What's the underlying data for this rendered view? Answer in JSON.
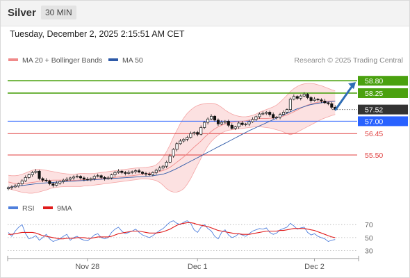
{
  "header": {
    "instrument": "Silver",
    "timeframe": "30 MIN",
    "datetime": "Tuesday, December 2, 2025 2:15:51 AM CET"
  },
  "chart_data": [
    {
      "type": "candlestick",
      "copyright": "Research © 2025 Trading Central",
      "legend": [
        {
          "name": "MA 20 + Bollinger Bands",
          "color": "#f08a8a"
        },
        {
          "name": "MA 50",
          "color": "#2e5aa8"
        }
      ],
      "x_labels": [
        {
          "label": "Nov 28",
          "index": 23
        },
        {
          "label": "Dec 1",
          "index": 55
        },
        {
          "label": "Dec 2",
          "index": 89
        }
      ],
      "ylim": [
        53.8,
        59.3
      ],
      "close": [
        54.05,
        54.08,
        54.12,
        54.22,
        54.35,
        54.5,
        54.62,
        54.72,
        54.78,
        54.45,
        54.38,
        54.35,
        54.22,
        54.15,
        54.25,
        54.32,
        54.38,
        54.42,
        54.48,
        54.52,
        54.55,
        54.48,
        54.42,
        54.4,
        54.45,
        54.55,
        54.58,
        54.5,
        54.45,
        54.48,
        54.62,
        54.72,
        54.78,
        54.72,
        54.68,
        54.72,
        54.76,
        54.8,
        54.74,
        54.68,
        54.65,
        54.62,
        54.72,
        54.82,
        54.92,
        55.0,
        55.18,
        55.45,
        55.75,
        56.0,
        56.12,
        56.2,
        56.28,
        56.45,
        56.5,
        56.42,
        56.72,
        56.95,
        57.1,
        57.22,
        57.05,
        56.88,
        56.95,
        57.0,
        56.82,
        56.68,
        56.75,
        56.92,
        56.85,
        56.88,
        56.98,
        57.08,
        57.2,
        57.32,
        57.35,
        57.4,
        57.3,
        57.15,
        57.18,
        57.3,
        57.4,
        57.52,
        57.98,
        58.1,
        58.02,
        58.12,
        58.2,
        58.05,
        57.92,
        57.98,
        57.95,
        57.9,
        57.82,
        57.78,
        57.62,
        57.52
      ],
      "ma20": [
        54.3,
        54.26,
        54.24,
        54.23,
        54.22,
        54.24,
        54.26,
        54.28,
        54.3,
        54.33,
        54.35,
        54.36,
        54.37,
        54.38,
        54.38,
        54.38,
        54.38,
        54.37,
        54.37,
        54.37,
        54.38,
        54.39,
        54.4,
        54.4,
        54.41,
        54.43,
        54.44,
        54.45,
        54.46,
        54.47,
        54.48,
        54.5,
        54.52,
        54.53,
        54.55,
        54.57,
        54.58,
        54.6,
        54.62,
        54.64,
        54.66,
        54.68,
        54.7,
        54.73,
        54.77,
        54.81,
        54.87,
        54.95,
        55.06,
        55.18,
        55.3,
        55.42,
        55.55,
        55.7,
        55.85,
        55.98,
        56.12,
        56.28,
        56.42,
        56.55,
        56.66,
        56.75,
        56.82,
        56.88,
        56.92,
        56.95,
        56.97,
        56.99,
        57.0,
        57.02,
        57.05,
        57.08,
        57.1,
        57.12,
        57.12,
        57.12,
        57.13,
        57.14,
        57.16,
        57.19,
        57.23,
        57.28,
        57.35,
        57.42,
        57.5,
        57.58,
        57.65,
        57.72,
        57.77,
        57.81,
        57.84,
        57.87,
        57.89,
        57.9,
        57.9,
        57.9
      ],
      "bb_upper": [
        54.6,
        54.58,
        54.58,
        54.6,
        54.64,
        54.7,
        54.76,
        54.82,
        54.86,
        54.86,
        54.84,
        54.82,
        54.79,
        54.76,
        54.73,
        54.7,
        54.68,
        54.66,
        54.65,
        54.65,
        54.66,
        54.68,
        54.68,
        54.67,
        54.67,
        54.68,
        54.7,
        54.72,
        54.74,
        54.76,
        54.78,
        54.8,
        54.82,
        54.84,
        54.86,
        54.88,
        54.9,
        54.92,
        54.93,
        54.94,
        54.95,
        54.97,
        55.0,
        55.06,
        55.2,
        55.4,
        55.65,
        55.95,
        56.3,
        56.6,
        56.9,
        57.15,
        57.35,
        57.5,
        57.62,
        57.7,
        57.75,
        57.78,
        57.8,
        57.8,
        57.78,
        57.72,
        57.62,
        57.5,
        57.4,
        57.32,
        57.26,
        57.22,
        57.2,
        57.2,
        57.22,
        57.26,
        57.32,
        57.4,
        57.46,
        57.52,
        57.58,
        57.64,
        57.72,
        57.85,
        58.0,
        58.15,
        58.32,
        58.45,
        58.55,
        58.62,
        58.66,
        58.68,
        58.68,
        58.66,
        58.62,
        58.58,
        58.52,
        58.46,
        58.4,
        58.35
      ],
      "bb_lower": [
        54.0,
        53.96,
        53.92,
        53.88,
        53.84,
        53.82,
        53.8,
        53.8,
        53.82,
        53.86,
        53.9,
        53.94,
        54.0,
        54.04,
        54.06,
        54.08,
        54.09,
        54.1,
        54.1,
        54.1,
        54.1,
        54.1,
        54.12,
        54.13,
        54.14,
        54.16,
        54.18,
        54.2,
        54.22,
        54.24,
        54.26,
        54.28,
        54.3,
        54.32,
        54.34,
        54.36,
        54.38,
        54.4,
        54.42,
        54.44,
        54.44,
        54.42,
        54.4,
        54.36,
        54.28,
        54.15,
        54.0,
        53.9,
        53.85,
        53.85,
        53.9,
        54.0,
        54.2,
        54.45,
        54.75,
        55.05,
        55.35,
        55.65,
        55.9,
        56.1,
        56.25,
        56.38,
        56.48,
        56.55,
        56.6,
        56.62,
        56.64,
        56.66,
        56.68,
        56.7,
        56.72,
        56.74,
        56.75,
        56.75,
        56.74,
        56.72,
        56.7,
        56.66,
        56.62,
        56.58,
        56.52,
        56.45,
        56.4,
        56.45,
        56.52,
        56.6,
        56.68,
        56.76,
        56.84,
        56.92,
        57.0,
        57.08,
        57.14,
        57.2,
        57.25,
        57.3
      ],
      "ma50": [
        54.05,
        54.08,
        54.1,
        54.12,
        54.14,
        54.16,
        54.18,
        54.2,
        54.22,
        54.24,
        54.25,
        54.26,
        54.27,
        54.28,
        54.29,
        54.3,
        54.31,
        54.32,
        54.33,
        54.34,
        54.35,
        54.36,
        54.37,
        54.38,
        54.39,
        54.4,
        54.41,
        54.42,
        54.43,
        54.44,
        54.45,
        54.46,
        54.47,
        54.48,
        54.49,
        54.5,
        54.51,
        54.52,
        54.53,
        54.54,
        54.55,
        54.56,
        54.58,
        54.6,
        54.62,
        54.65,
        54.7,
        54.76,
        54.83,
        54.9,
        54.98,
        55.06,
        55.14,
        55.22,
        55.3,
        55.38,
        55.46,
        55.54,
        55.62,
        55.7,
        55.78,
        55.86,
        55.94,
        56.02,
        56.1,
        56.18,
        56.26,
        56.34,
        56.42,
        56.5,
        56.58,
        56.65,
        56.72,
        56.79,
        56.86,
        56.93,
        57.0,
        57.07,
        57.14,
        57.21,
        57.28,
        57.35,
        57.42,
        57.49,
        57.55,
        57.6,
        57.65,
        57.7,
        57.74,
        57.77,
        57.8,
        57.82,
        57.84,
        57.86,
        57.88,
        57.9
      ],
      "levels": [
        {
          "value": 58.8,
          "label": "58.80",
          "color": "#4aa10f",
          "kind": "resistance"
        },
        {
          "value": 58.25,
          "label": "58.25",
          "color": "#4aa10f",
          "kind": "resistance"
        },
        {
          "value": 57.52,
          "label": "57.52",
          "color": "#333333",
          "kind": "last"
        },
        {
          "value": 57.0,
          "label": "57.00",
          "color": "#2962ff",
          "kind": "pivot"
        },
        {
          "value": 56.45,
          "label": "56.45",
          "color": "#e03c3c",
          "kind": "support"
        },
        {
          "value": 55.5,
          "label": "55.50",
          "color": "#e03c3c",
          "kind": "support"
        }
      ],
      "target_arrow": {
        "from_value": 57.52,
        "to_value": 58.8,
        "color": "#2f6db5"
      }
    },
    {
      "type": "line",
      "legend": [
        {
          "name": "RSI",
          "color": "#4f7fdc"
        },
        {
          "name": "9MA",
          "color": "#e01b1b"
        }
      ],
      "ylim": [
        22,
        82
      ],
      "y_ticks": [
        "70",
        "50",
        "30"
      ],
      "rsi": [
        58,
        52,
        60,
        66,
        70,
        56,
        48,
        50,
        53,
        46,
        50,
        55,
        48,
        44,
        46,
        48,
        52,
        55,
        46,
        50,
        52,
        48,
        46,
        45,
        49,
        54,
        56,
        50,
        48,
        50,
        58,
        63,
        66,
        60,
        56,
        58,
        60,
        63,
        58,
        54,
        52,
        50,
        53,
        57,
        61,
        64,
        69,
        74,
        76,
        72,
        70,
        74,
        76,
        72,
        62,
        58,
        66,
        70,
        64,
        60,
        52,
        48,
        58,
        62,
        54,
        50,
        52,
        56,
        54,
        52,
        56,
        60,
        62,
        64,
        63,
        65,
        58,
        55,
        57,
        62,
        64,
        66,
        72,
        68,
        63,
        65,
        66,
        58,
        54,
        56,
        52,
        50,
        48,
        44,
        46,
        47
      ],
      "ma9": [
        55,
        55,
        56,
        57,
        58,
        58,
        58,
        58,
        57,
        55,
        53,
        52,
        51,
        50,
        49,
        48,
        48,
        49,
        49,
        49,
        50,
        50,
        50,
        49,
        49,
        50,
        51,
        51,
        51,
        51,
        52,
        54,
        56,
        57,
        58,
        59,
        60,
        60,
        60,
        59,
        58,
        57,
        57,
        57,
        58,
        59,
        61,
        63,
        66,
        69,
        71,
        72,
        73,
        73,
        72,
        70,
        69,
        68,
        67,
        65,
        63,
        61,
        60,
        59,
        58,
        57,
        56,
        56,
        55,
        55,
        55,
        56,
        57,
        58,
        59,
        60,
        60,
        60,
        60,
        61,
        61,
        62,
        63,
        64,
        64,
        64,
        64,
        63,
        62,
        61,
        59,
        57,
        55,
        53,
        51,
        50
      ]
    }
  ]
}
